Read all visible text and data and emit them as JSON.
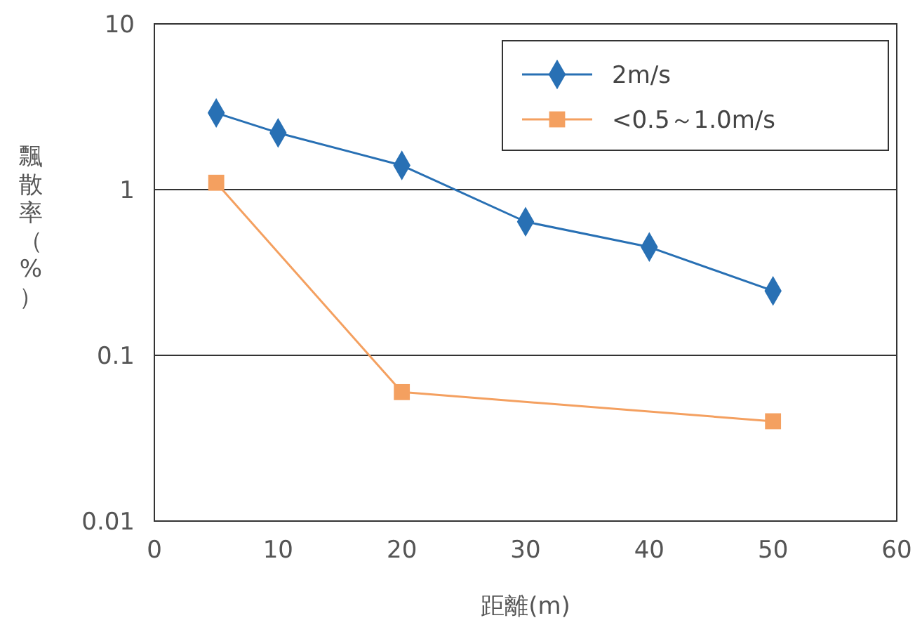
{
  "chart_data": {
    "type": "line",
    "xlabel": "距離(m)",
    "ylabel": "飄散率（%）",
    "log": "y",
    "xlim": [
      0,
      60
    ],
    "xticks": [
      0,
      10,
      20,
      30,
      40,
      50,
      60
    ],
    "ylim": [
      0.01,
      10
    ],
    "yticks": [
      0.01,
      0.1,
      1,
      10
    ],
    "grid": "y",
    "legend": "top right",
    "line_style": "solid",
    "series": [
      {
        "name": "2m/s",
        "color": "#2870b4",
        "marker": "diamond",
        "x": [
          5,
          10,
          20,
          30,
          40,
          50
        ],
        "values": [
          2.9,
          2.2,
          1.4,
          0.64,
          0.45,
          0.245
        ]
      },
      {
        "name": "<0.5～1.0m/s",
        "color": "#f4a060",
        "marker": "square",
        "x": [
          5,
          20,
          50
        ],
        "values": [
          1.1,
          0.06,
          0.04
        ]
      }
    ]
  }
}
